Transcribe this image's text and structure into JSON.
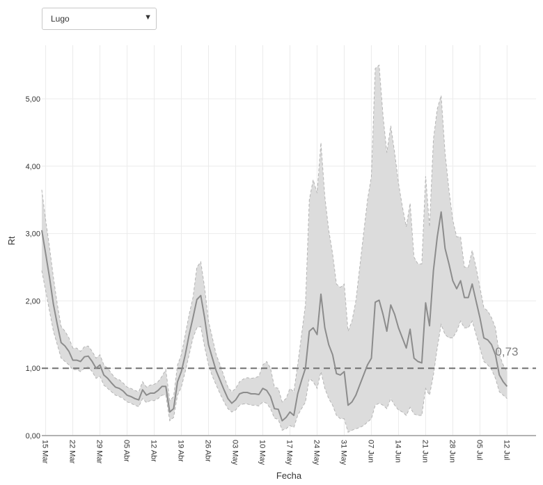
{
  "region_select": {
    "value": "Lugo",
    "arrow_icon": "triangle-down-icon"
  },
  "chart_data": {
    "type": "line",
    "xlabel": "Fecha",
    "ylabel": "Rt",
    "ylim": [
      0,
      5.6
    ],
    "x_tick_labels": [
      "15 Mar",
      "22 Mar",
      "29 Mar",
      "05 Abr",
      "12 Abr",
      "19 Abr",
      "26 Abr",
      "03 May",
      "10 May",
      "17 May",
      "24 May",
      "31 May",
      "07 Jun",
      "14 Jun",
      "21 Jun",
      "28 Jun",
      "05 Jul",
      "12 Jul"
    ],
    "y_tick_labels": [
      "0,00",
      "1,00",
      "2,00",
      "3,00",
      "4,00",
      "5,00"
    ],
    "y_ticks": [
      0,
      1,
      2,
      3,
      4,
      5
    ],
    "reference_line": 1.0,
    "last_value_label": "0,73",
    "grid": true,
    "colors": {
      "line": "#8c8c8c",
      "band": "#dcdcdc",
      "band_border": "#b4b4b4",
      "reference": "#707070"
    },
    "series": [
      {
        "x": [
          "2020-03-14",
          "2020-03-15",
          "2020-03-16",
          "2020-03-17",
          "2020-03-18",
          "2020-03-19",
          "2020-03-20",
          "2020-03-21",
          "2020-03-22",
          "2020-03-23",
          "2020-03-24",
          "2020-03-25",
          "2020-03-26",
          "2020-03-27",
          "2020-03-28",
          "2020-03-29",
          "2020-03-30",
          "2020-03-31",
          "2020-04-01",
          "2020-04-02",
          "2020-04-03",
          "2020-04-04",
          "2020-04-05",
          "2020-04-06",
          "2020-04-07",
          "2020-04-08",
          "2020-04-09",
          "2020-04-10",
          "2020-04-11",
          "2020-04-12",
          "2020-04-13",
          "2020-04-14",
          "2020-04-15",
          "2020-04-16",
          "2020-04-17",
          "2020-04-18",
          "2020-04-19",
          "2020-04-20",
          "2020-04-21",
          "2020-04-22",
          "2020-04-23",
          "2020-04-24",
          "2020-04-25",
          "2020-04-26",
          "2020-04-27",
          "2020-04-28",
          "2020-04-29",
          "2020-04-30",
          "2020-05-01",
          "2020-05-02",
          "2020-05-03",
          "2020-05-04",
          "2020-05-05",
          "2020-05-06",
          "2020-05-07",
          "2020-05-08",
          "2020-05-09",
          "2020-05-10",
          "2020-05-11",
          "2020-05-12",
          "2020-05-13",
          "2020-05-14",
          "2020-05-15",
          "2020-05-16",
          "2020-05-17",
          "2020-05-18",
          "2020-05-19",
          "2020-05-20",
          "2020-05-21",
          "2020-05-22",
          "2020-05-23",
          "2020-05-24",
          "2020-05-25",
          "2020-05-26",
          "2020-05-27",
          "2020-05-28",
          "2020-05-29",
          "2020-05-30",
          "2020-05-31",
          "2020-06-01",
          "2020-06-02",
          "2020-06-03",
          "2020-06-04",
          "2020-06-05",
          "2020-06-06",
          "2020-06-07",
          "2020-06-08",
          "2020-06-09",
          "2020-06-10",
          "2020-06-11",
          "2020-06-12",
          "2020-06-13",
          "2020-06-14",
          "2020-06-15",
          "2020-06-16",
          "2020-06-17",
          "2020-06-18",
          "2020-06-19",
          "2020-06-20",
          "2020-06-21",
          "2020-06-22",
          "2020-06-23",
          "2020-06-24",
          "2020-06-25",
          "2020-06-26",
          "2020-06-27",
          "2020-06-28",
          "2020-06-29",
          "2020-06-30",
          "2020-07-01",
          "2020-07-02",
          "2020-07-03",
          "2020-07-04",
          "2020-07-05",
          "2020-07-06",
          "2020-07-07",
          "2020-07-08",
          "2020-07-09",
          "2020-07-10",
          "2020-07-11",
          "2020-07-12"
        ],
        "rt": [
          3.05,
          2.7,
          2.35,
          1.95,
          1.65,
          1.38,
          1.33,
          1.25,
          1.12,
          1.12,
          1.1,
          1.17,
          1.18,
          1.1,
          1.0,
          1.05,
          0.9,
          0.85,
          0.78,
          0.72,
          0.7,
          0.66,
          0.6,
          0.58,
          0.55,
          0.53,
          0.68,
          0.6,
          0.63,
          0.63,
          0.67,
          0.73,
          0.73,
          0.35,
          0.4,
          0.8,
          0.95,
          1.2,
          1.5,
          1.75,
          2.02,
          2.08,
          1.75,
          1.35,
          1.15,
          0.96,
          0.82,
          0.68,
          0.55,
          0.48,
          0.53,
          0.62,
          0.64,
          0.64,
          0.62,
          0.62,
          0.61,
          0.7,
          0.67,
          0.58,
          0.4,
          0.39,
          0.22,
          0.27,
          0.35,
          0.3,
          0.62,
          0.82,
          1.0,
          1.55,
          1.6,
          1.5,
          2.1,
          1.6,
          1.35,
          1.2,
          0.92,
          0.9,
          0.95,
          0.45,
          0.5,
          0.6,
          0.75,
          0.9,
          1.05,
          1.15,
          1.98,
          2.01,
          1.8,
          1.55,
          1.94,
          1.8,
          1.6,
          1.45,
          1.3,
          1.58,
          1.15,
          1.1,
          1.08,
          1.97,
          1.63,
          2.45,
          2.95,
          3.32,
          2.78,
          2.55,
          2.3,
          2.18,
          2.3,
          2.05,
          2.05,
          2.25,
          2.0,
          1.75,
          1.45,
          1.42,
          1.35,
          1.2,
          0.9,
          0.8,
          0.73
        ],
        "lower": [
          2.45,
          2.15,
          1.85,
          1.55,
          1.35,
          1.15,
          1.1,
          1.05,
          0.98,
          0.98,
          0.95,
          1.0,
          1.02,
          0.95,
          0.85,
          0.88,
          0.75,
          0.7,
          0.65,
          0.6,
          0.58,
          0.55,
          0.5,
          0.48,
          0.45,
          0.43,
          0.55,
          0.49,
          0.52,
          0.52,
          0.55,
          0.6,
          0.6,
          0.22,
          0.27,
          0.6,
          0.72,
          0.95,
          1.2,
          1.45,
          1.6,
          1.62,
          1.32,
          1.05,
          0.88,
          0.75,
          0.62,
          0.5,
          0.4,
          0.35,
          0.38,
          0.45,
          0.47,
          0.47,
          0.45,
          0.45,
          0.44,
          0.5,
          0.48,
          0.4,
          0.26,
          0.24,
          0.08,
          0.1,
          0.15,
          0.12,
          0.3,
          0.4,
          0.5,
          0.85,
          0.8,
          0.7,
          0.95,
          0.7,
          0.55,
          0.45,
          0.3,
          0.25,
          0.25,
          0.05,
          0.08,
          0.1,
          0.12,
          0.15,
          0.2,
          0.25,
          0.45,
          0.48,
          0.45,
          0.4,
          0.55,
          0.45,
          0.38,
          0.35,
          0.3,
          0.42,
          0.32,
          0.3,
          0.3,
          0.7,
          0.6,
          0.9,
          1.3,
          1.65,
          1.5,
          1.45,
          1.45,
          1.55,
          1.7,
          1.6,
          1.6,
          1.7,
          1.5,
          1.3,
          1.1,
          1.05,
          0.98,
          0.85,
          0.65,
          0.6,
          0.55
        ],
        "upper": [
          3.65,
          3.2,
          2.8,
          2.35,
          1.95,
          1.62,
          1.55,
          1.45,
          1.3,
          1.3,
          1.25,
          1.32,
          1.33,
          1.25,
          1.15,
          1.2,
          1.05,
          1.0,
          0.92,
          0.85,
          0.83,
          0.78,
          0.72,
          0.7,
          0.67,
          0.65,
          0.8,
          0.72,
          0.75,
          0.76,
          0.8,
          0.88,
          0.98,
          0.52,
          0.58,
          1.05,
          1.2,
          1.5,
          1.8,
          2.05,
          2.5,
          2.58,
          2.2,
          1.7,
          1.45,
          1.2,
          1.05,
          0.88,
          0.72,
          0.65,
          0.7,
          0.8,
          0.84,
          0.86,
          0.85,
          0.86,
          0.88,
          1.05,
          1.1,
          1.0,
          0.72,
          0.7,
          0.5,
          0.55,
          0.7,
          0.65,
          1.05,
          1.5,
          1.95,
          3.5,
          3.8,
          3.6,
          4.35,
          3.55,
          3.05,
          2.7,
          2.25,
          2.2,
          2.25,
          1.55,
          1.7,
          2.0,
          2.5,
          3.0,
          3.5,
          3.85,
          5.45,
          5.5,
          4.75,
          4.2,
          4.6,
          4.2,
          3.75,
          3.4,
          3.1,
          3.45,
          2.65,
          2.55,
          2.55,
          3.85,
          3.1,
          4.4,
          4.85,
          5.05,
          4.2,
          3.65,
          3.2,
          2.95,
          2.95,
          2.5,
          2.5,
          2.75,
          2.5,
          2.2,
          1.9,
          1.85,
          1.75,
          1.6,
          1.2,
          1.05,
          0.95
        ]
      }
    ]
  }
}
